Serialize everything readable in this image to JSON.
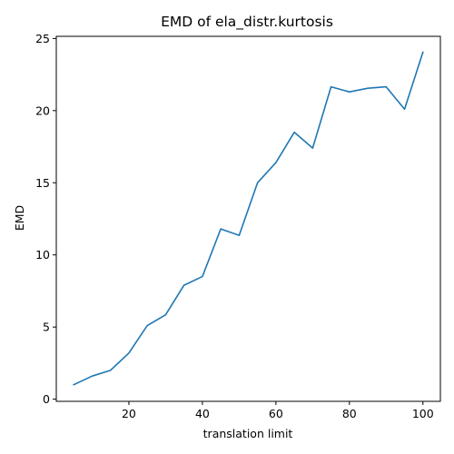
{
  "chart_data": {
    "type": "line",
    "title": "EMD of ela_distr.kurtosis",
    "xlabel": "translation limit",
    "ylabel": "EMD",
    "xlim": [
      0.25,
      104.75
    ],
    "ylim": [
      -0.15,
      25.15
    ],
    "xticks": [
      20,
      40,
      60,
      80,
      100
    ],
    "yticks": [
      0,
      5,
      10,
      15,
      20,
      25
    ],
    "grid": false,
    "legend": "none",
    "color": "#1f77b4",
    "series": [
      {
        "x": [
          5,
          10,
          15,
          20,
          25,
          30,
          35,
          40,
          45,
          50,
          55,
          60,
          65,
          70,
          75,
          80,
          85,
          90,
          95,
          100
        ],
        "values": [
          1.0,
          1.6,
          2.0,
          3.2,
          5.1,
          5.85,
          7.9,
          8.5,
          11.8,
          11.35,
          15.0,
          16.4,
          18.5,
          17.4,
          21.65,
          21.3,
          21.55,
          21.65,
          20.1,
          24.05
        ]
      }
    ]
  }
}
